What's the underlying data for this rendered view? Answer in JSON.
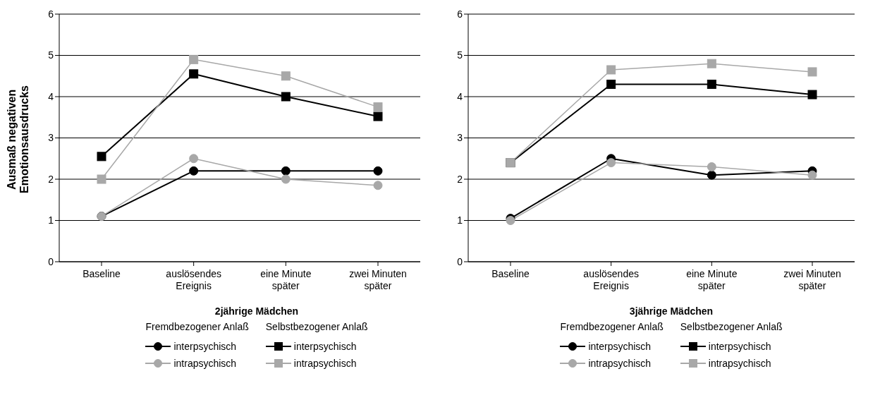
{
  "chart_data": [
    {
      "type": "line",
      "xlabel": "2jährige Mädchen",
      "ylabel": "Ausmaß negativen Emotionsausdrucks",
      "categories": [
        "Baseline",
        "auslösendes Ereignis",
        "eine Minute später",
        "zwei Minuten später"
      ],
      "ylim": [
        0,
        6
      ],
      "yticks": [
        0,
        1,
        2,
        3,
        4,
        5,
        6
      ],
      "grid": "y",
      "legend": "bottom",
      "annotations": [
        "Fremdbezogener Anlaß",
        "Selbstbezogener Anlaß"
      ],
      "series": [
        {
          "name": "interpsychisch",
          "color": "#000000",
          "marker": "circle",
          "values": [
            1.1,
            2.2,
            2.2,
            2.2
          ]
        },
        {
          "name": "intrapsychisch",
          "color": "#a8a8a8",
          "marker": "circle",
          "values": [
            1.1,
            2.5,
            2.0,
            1.85
          ]
        },
        {
          "name": "interpsychisch",
          "color": "#000000",
          "marker": "square",
          "values": [
            2.55,
            4.55,
            4.0,
            3.52
          ]
        },
        {
          "name": "intrapsychisch",
          "color": "#a8a8a8",
          "marker": "square",
          "values": [
            2.0,
            4.9,
            4.5,
            3.75
          ]
        }
      ]
    },
    {
      "type": "line",
      "xlabel": "3jährige Mädchen",
      "categories": [
        "Baseline",
        "auslösendes Ereignis",
        "eine Minute später",
        "zwei Minuten später"
      ],
      "ylim": [
        0,
        6
      ],
      "yticks": [
        0,
        1,
        2,
        3,
        4,
        5,
        6
      ],
      "grid": "y",
      "legend": "bottom",
      "annotations": [
        "Fremdbezogener Anlaß",
        "Selbstbezogener Anlaß"
      ],
      "series": [
        {
          "name": "interpsychisch",
          "color": "#000000",
          "marker": "circle",
          "values": [
            1.05,
            2.5,
            2.1,
            2.2
          ]
        },
        {
          "name": "intrapsychisch",
          "color": "#a8a8a8",
          "marker": "circle",
          "values": [
            1.0,
            2.4,
            2.3,
            2.1
          ]
        },
        {
          "name": "interpsychisch",
          "color": "#000000",
          "marker": "square",
          "values": [
            2.4,
            4.3,
            4.3,
            4.05
          ]
        },
        {
          "name": "intrapsychisch",
          "color": "#a8a8a8",
          "marker": "square",
          "values": [
            2.4,
            4.65,
            4.8,
            4.6
          ]
        }
      ]
    }
  ]
}
